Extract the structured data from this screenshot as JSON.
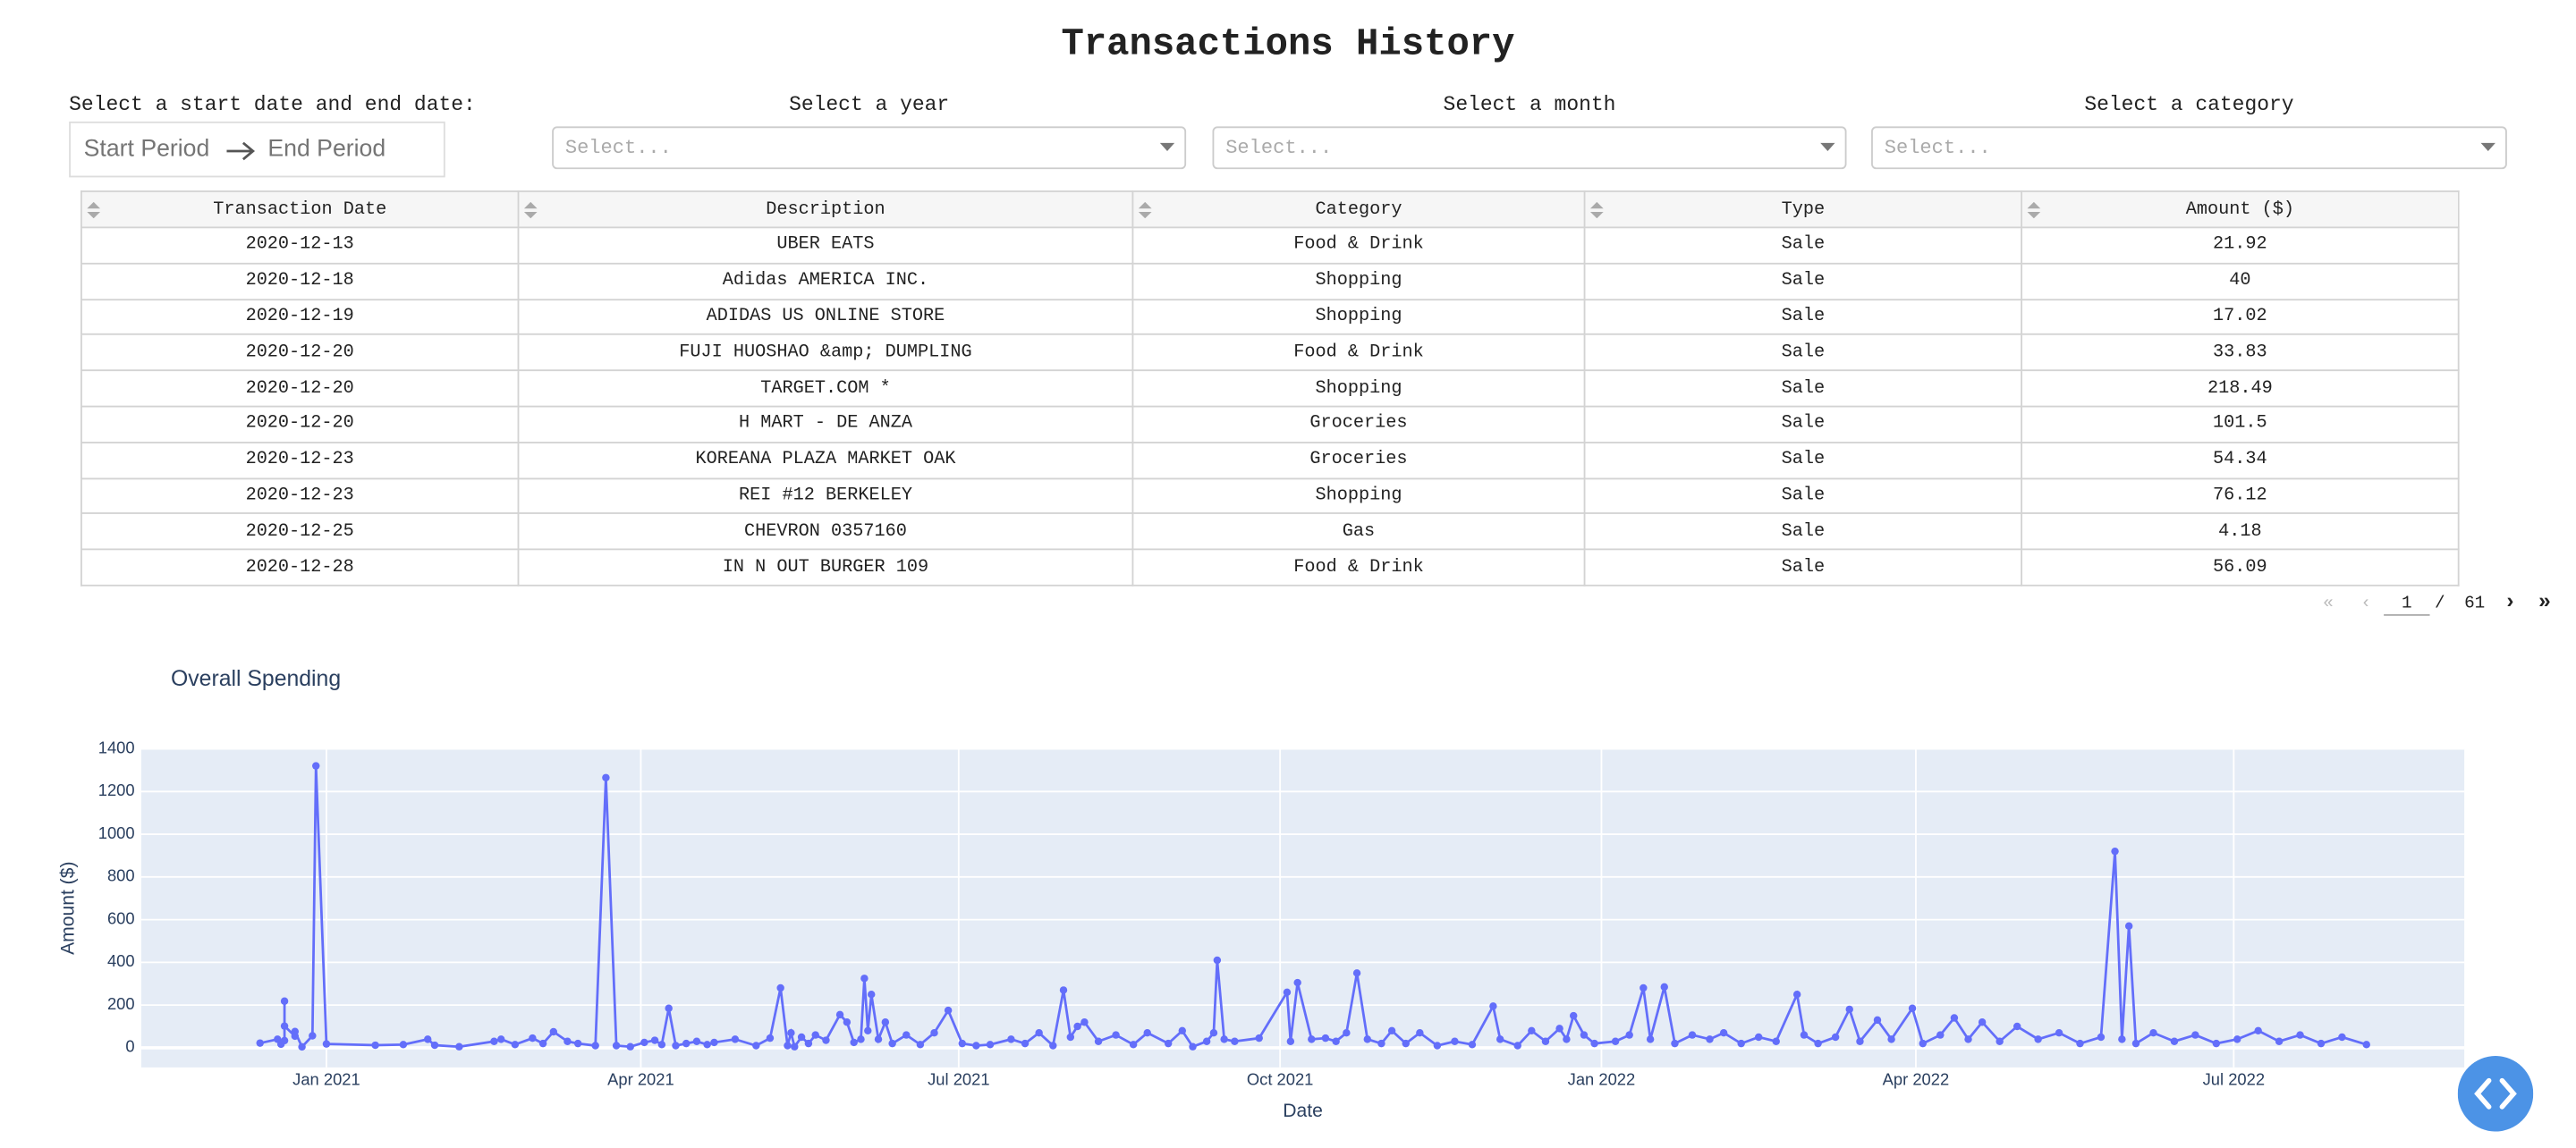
{
  "header": {
    "title": "Transactions History"
  },
  "filters": {
    "date_range": {
      "label": "Select a start date and end date:",
      "start": "Start Period",
      "end": "End Period"
    },
    "year": {
      "label": "Select a year",
      "placeholder": "Select..."
    },
    "month": {
      "label": "Select a month",
      "placeholder": "Select..."
    },
    "category": {
      "label": "Select a category",
      "placeholder": "Select..."
    }
  },
  "table": {
    "columns": [
      "Transaction Date",
      "Description",
      "Category",
      "Type",
      "Amount ($)"
    ],
    "rows": [
      [
        "2020-12-13",
        "UBER EATS",
        "Food & Drink",
        "Sale",
        21.92
      ],
      [
        "2020-12-18",
        "Adidas AMERICA INC.",
        "Shopping",
        "Sale",
        40
      ],
      [
        "2020-12-19",
        "ADIDAS US ONLINE STORE",
        "Shopping",
        "Sale",
        17.02
      ],
      [
        "2020-12-20",
        "FUJI HUOSHAO &amp; DUMPLING",
        "Food & Drink",
        "Sale",
        33.83
      ],
      [
        "2020-12-20",
        "TARGET.COM *",
        "Shopping",
        "Sale",
        218.49
      ],
      [
        "2020-12-20",
        "H MART - DE ANZA",
        "Groceries",
        "Sale",
        101.5
      ],
      [
        "2020-12-23",
        "KOREANA PLAZA MARKET OAK",
        "Groceries",
        "Sale",
        54.34
      ],
      [
        "2020-12-23",
        "REI #12 BERKELEY",
        "Shopping",
        "Sale",
        76.12
      ],
      [
        "2020-12-25",
        "CHEVRON 0357160",
        "Gas",
        "Sale",
        4.18
      ],
      [
        "2020-12-28",
        "IN N OUT BURGER 109",
        "Food & Drink",
        "Sale",
        56.09
      ]
    ]
  },
  "pagination": {
    "current": 1,
    "separator": "/",
    "total": 61
  },
  "chart_data": {
    "type": "line",
    "title": "Overall Spending",
    "x_label": "Date",
    "y_label": "Amount ($)",
    "color": "#636efa",
    "grid": true,
    "xlim": [
      "2020-11-09",
      "2022-09-05"
    ],
    "ylim": [
      -92,
      1400
    ],
    "xticks": [
      {
        "value": "2021-01-01",
        "label": "Jan 2021"
      },
      {
        "value": "2021-04-01",
        "label": "Apr 2021"
      },
      {
        "value": "2021-07-01",
        "label": "Jul 2021"
      },
      {
        "value": "2021-10-01",
        "label": "Oct 2021"
      },
      {
        "value": "2022-01-01",
        "label": "Jan 2022"
      },
      {
        "value": "2022-04-01",
        "label": "Apr 2022"
      },
      {
        "value": "2022-07-01",
        "label": "Jul 2022"
      }
    ],
    "yticks": [
      0,
      200,
      400,
      600,
      800,
      1000,
      1200,
      1400
    ],
    "x": [
      "2020-12-13",
      "2020-12-18",
      "2020-12-19",
      "2020-12-20",
      "2020-12-20",
      "2020-12-20",
      "2020-12-23",
      "2020-12-23",
      "2020-12-25",
      "2020-12-28",
      "2020-12-29",
      "2021-01-01",
      "2021-01-15",
      "2021-01-23",
      "2021-01-30",
      "2021-02-01",
      "2021-02-08",
      "2021-02-18",
      "2021-02-20",
      "2021-02-24",
      "2021-03-01",
      "2021-03-04",
      "2021-03-07",
      "2021-03-11",
      "2021-03-14",
      "2021-03-19",
      "2021-03-22",
      "2021-03-25",
      "2021-03-29",
      "2021-04-02",
      "2021-04-05",
      "2021-04-07",
      "2021-04-09",
      "2021-04-11",
      "2021-04-14",
      "2021-04-17",
      "2021-04-20",
      "2021-04-22",
      "2021-04-28",
      "2021-05-04",
      "2021-05-08",
      "2021-05-11",
      "2021-05-13",
      "2021-05-14",
      "2021-05-15",
      "2021-05-17",
      "2021-05-19",
      "2021-05-21",
      "2021-05-24",
      "2021-05-28",
      "2021-05-30",
      "2021-06-01",
      "2021-06-03",
      "2021-06-04",
      "2021-06-05",
      "2021-06-06",
      "2021-06-08",
      "2021-06-10",
      "2021-06-12",
      "2021-06-16",
      "2021-06-20",
      "2021-06-24",
      "2021-06-28",
      "2021-07-02",
      "2021-07-06",
      "2021-07-10",
      "2021-07-16",
      "2021-07-20",
      "2021-07-24",
      "2021-07-28",
      "2021-07-31",
      "2021-08-02",
      "2021-08-04",
      "2021-08-06",
      "2021-08-10",
      "2021-08-15",
      "2021-08-20",
      "2021-08-24",
      "2021-08-30",
      "2021-09-03",
      "2021-09-06",
      "2021-09-10",
      "2021-09-12",
      "2021-09-13",
      "2021-09-15",
      "2021-09-18",
      "2021-09-25",
      "2021-10-03",
      "2021-10-04",
      "2021-10-06",
      "2021-10-10",
      "2021-10-14",
      "2021-10-17",
      "2021-10-20",
      "2021-10-23",
      "2021-10-26",
      "2021-10-30",
      "2021-11-02",
      "2021-11-06",
      "2021-11-10",
      "2021-11-15",
      "2021-11-20",
      "2021-11-25",
      "2021-12-01",
      "2021-12-03",
      "2021-12-08",
      "2021-12-12",
      "2021-12-16",
      "2021-12-20",
      "2021-12-22",
      "2021-12-24",
      "2021-12-27",
      "2021-12-30",
      "2022-01-05",
      "2022-01-09",
      "2022-01-13",
      "2022-01-15",
      "2022-01-19",
      "2022-01-22",
      "2022-01-27",
      "2022-02-01",
      "2022-02-05",
      "2022-02-10",
      "2022-02-15",
      "2022-02-20",
      "2022-02-26",
      "2022-02-28",
      "2022-03-04",
      "2022-03-09",
      "2022-03-13",
      "2022-03-16",
      "2022-03-21",
      "2022-03-25",
      "2022-03-31",
      "2022-04-03",
      "2022-04-08",
      "2022-04-12",
      "2022-04-16",
      "2022-04-20",
      "2022-04-25",
      "2022-04-30",
      "2022-05-06",
      "2022-05-12",
      "2022-05-18",
      "2022-05-24",
      "2022-05-28",
      "2022-05-30",
      "2022-06-01",
      "2022-06-03",
      "2022-06-08",
      "2022-06-14",
      "2022-06-20",
      "2022-06-26",
      "2022-07-02",
      "2022-07-08",
      "2022-07-14",
      "2022-07-20",
      "2022-07-26",
      "2022-08-01",
      "2022-08-08"
    ],
    "values": [
      21.92,
      40,
      17.02,
      33.83,
      218.49,
      101.5,
      54.34,
      76.12,
      4.18,
      56.09,
      1320,
      18,
      12,
      15,
      40,
      12,
      5,
      30,
      40,
      15,
      45,
      20,
      75,
      30,
      20,
      10,
      1265,
      10,
      5,
      25,
      35,
      15,
      185,
      10,
      20,
      30,
      15,
      25,
      40,
      10,
      45,
      280,
      10,
      70,
      5,
      50,
      20,
      60,
      35,
      155,
      120,
      25,
      40,
      325,
      80,
      250,
      40,
      120,
      20,
      60,
      15,
      70,
      175,
      20,
      10,
      15,
      40,
      20,
      70,
      10,
      270,
      50,
      100,
      120,
      30,
      60,
      15,
      70,
      20,
      80,
      5,
      30,
      70,
      410,
      40,
      30,
      45,
      260,
      30,
      305,
      40,
      45,
      30,
      70,
      350,
      40,
      20,
      80,
      20,
      70,
      10,
      30,
      15,
      195,
      40,
      10,
      80,
      30,
      90,
      40,
      150,
      60,
      20,
      30,
      60,
      280,
      40,
      285,
      20,
      60,
      40,
      70,
      20,
      50,
      30,
      250,
      60,
      20,
      50,
      180,
      30,
      130,
      40,
      185,
      20,
      60,
      140,
      40,
      120,
      30,
      100,
      40,
      70,
      20,
      50,
      920,
      40,
      570,
      20,
      70,
      30,
      60,
      20,
      40,
      80,
      30,
      60,
      20,
      50,
      15
    ]
  }
}
